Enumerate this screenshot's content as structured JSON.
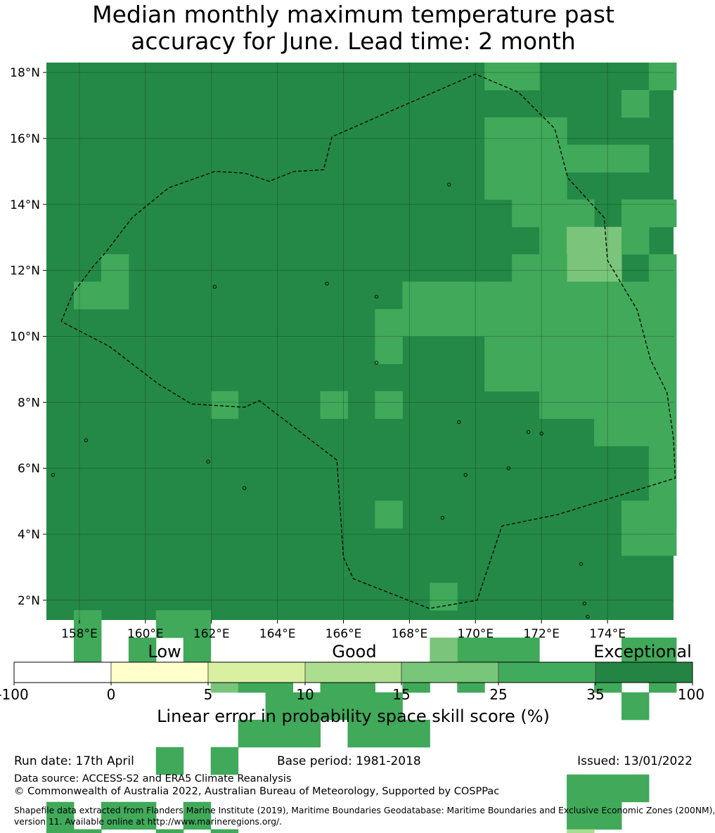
{
  "title": {
    "line1": "Median monthly maximum temperature past",
    "line2": "accuracy for June. Lead time: 2 month"
  },
  "map": {
    "lon_range": [
      157,
      176
    ],
    "lat_range": [
      1.4,
      18.3
    ],
    "lon_ticks": [
      "158°E",
      "160°E",
      "162°E",
      "164°E",
      "166°E",
      "168°E",
      "170°E",
      "172°E",
      "174°E"
    ],
    "lat_ticks": [
      "2°N",
      "4°N",
      "6°N",
      "8°N",
      "10°N",
      "12°N",
      "14°N",
      "16°N",
      "18°N"
    ],
    "background_color": "#248946",
    "category_colors": {
      "c25": "#40a95a",
      "c15": "#7ac57b",
      "c10": "#aadc8f",
      "c5": "#d9f0a2"
    },
    "eez_boundary_style": "dashed"
  },
  "colorbar": {
    "categories": [
      "Low",
      "Good",
      "Exceptional"
    ],
    "ticks": [
      "-100",
      "0",
      "5",
      "10",
      "15",
      "25",
      "35",
      "100"
    ],
    "colors": [
      "#ffffff",
      "#ffffcc",
      "#d9f0a3",
      "#addd8e",
      "#78c679",
      "#41ab5d",
      "#238443"
    ],
    "label": "Linear error in probability space skill score (%)"
  },
  "footer": {
    "run_date": "Run date: 17th April",
    "base_period": "Base period: 1981-2018",
    "issued": "Issued: 13/01/2022",
    "data_source": "Data source: ACCESS-S2 and ERA5 Climate Reanalysis",
    "copyright": "© Commonwealth of Australia 2022, Australian Bureau of Meteorology, Supported by COSPPac",
    "shapefile_line1": "Shapefile data extracted from Flanders Marine Institute (2019), Maritime Boundaries Geodatabase: Maritime Boundaries and Exclusive Economic Zones (200NM),",
    "shapefile_line2": "version 11. Available online at http://www.marineregions.org/."
  }
}
